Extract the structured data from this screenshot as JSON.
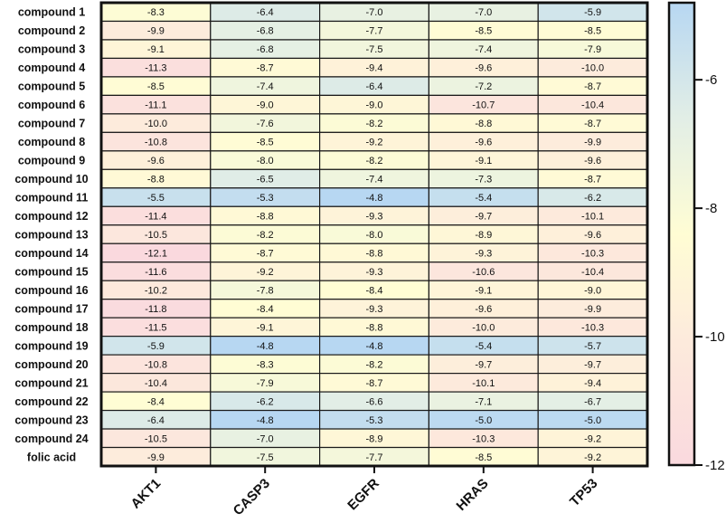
{
  "chart_data": {
    "type": "heatmap",
    "rows": [
      "compound 1",
      "compound 2",
      "compound 3",
      "compound 4",
      "compound 5",
      "compound 6",
      "compound 7",
      "compound 8",
      "compound 9",
      "compound 10",
      "compound 11",
      "compound 12",
      "compound 13",
      "compound 14",
      "compound 15",
      "compound 16",
      "compound 17",
      "compound 18",
      "compound 19",
      "compound 20",
      "compound 21",
      "compound 22",
      "compound 23",
      "compound 24",
      "folic acid"
    ],
    "columns": [
      "AKT1",
      "CASP3",
      "EGFR",
      "HRAS",
      "TP53"
    ],
    "values": [
      [
        -8.3,
        -6.4,
        -7.0,
        -7.0,
        -5.9
      ],
      [
        -9.9,
        -6.8,
        -7.7,
        -8.5,
        -8.5
      ],
      [
        -9.1,
        -6.8,
        -7.5,
        -7.4,
        -7.9
      ],
      [
        -11.3,
        -8.7,
        -9.4,
        -9.6,
        -10.0
      ],
      [
        -8.5,
        -7.4,
        -6.4,
        -7.2,
        -8.7
      ],
      [
        -11.1,
        -9.0,
        -9.0,
        -10.7,
        -10.4
      ],
      [
        -10.0,
        -7.6,
        -8.2,
        -8.8,
        -8.7
      ],
      [
        -10.8,
        -8.5,
        -9.2,
        -9.6,
        -9.9
      ],
      [
        -9.6,
        -8.0,
        -8.2,
        -9.1,
        -9.6
      ],
      [
        -8.8,
        -6.5,
        -7.4,
        -7.3,
        -8.7
      ],
      [
        -5.5,
        -5.3,
        -4.8,
        -5.4,
        -6.2
      ],
      [
        -11.4,
        -8.8,
        -9.3,
        -9.7,
        -10.1
      ],
      [
        -10.5,
        -8.2,
        -8.0,
        -8.9,
        -9.6
      ],
      [
        -12.1,
        -8.7,
        -8.8,
        -9.3,
        -10.3
      ],
      [
        -11.6,
        -9.2,
        -9.3,
        -10.6,
        -10.4
      ],
      [
        -10.2,
        -7.8,
        -8.4,
        -9.1,
        -9.0
      ],
      [
        -11.8,
        -8.4,
        -9.3,
        -9.6,
        -9.9
      ],
      [
        -11.5,
        -9.1,
        -8.8,
        -10.0,
        -10.3
      ],
      [
        -5.9,
        -4.8,
        -4.8,
        -5.4,
        -5.7
      ],
      [
        -10.8,
        -8.3,
        -8.2,
        -9.7,
        -9.7
      ],
      [
        -10.4,
        -7.9,
        -8.7,
        -10.1,
        -9.4
      ],
      [
        -8.4,
        -6.2,
        -6.6,
        -7.1,
        -6.7
      ],
      [
        -6.4,
        -4.8,
        -5.3,
        -5.0,
        -5.0
      ],
      [
        -10.5,
        -7.0,
        -8.9,
        -10.3,
        -9.2
      ],
      [
        -9.9,
        -7.5,
        -7.7,
        -8.5,
        -9.2
      ]
    ],
    "colorbar": {
      "range": [
        -12,
        -4.8
      ],
      "ticks": [
        -6,
        -8,
        -10,
        -12
      ],
      "tick_labels": [
        "-6",
        "-8",
        "-10",
        "-12"
      ],
      "stops": [
        {
          "value": -12,
          "color": "#fad9de"
        },
        {
          "value": -10,
          "color": "#fdebdc"
        },
        {
          "value": -8.4,
          "color": "#fffdd4"
        },
        {
          "value": -6.6,
          "color": "#e2eee6"
        },
        {
          "value": -4.8,
          "color": "#b7d7f2"
        }
      ]
    }
  }
}
